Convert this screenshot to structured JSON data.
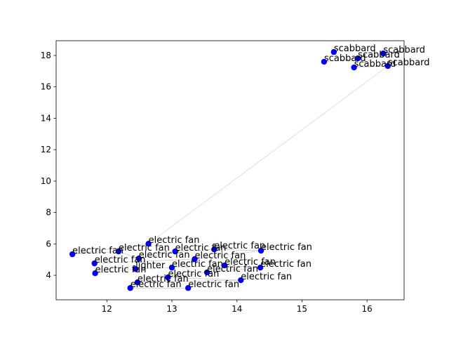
{
  "chart_data": {
    "type": "scatter",
    "x": [
      15.49,
      15.34,
      15.86,
      16.25,
      15.8,
      16.32,
      12.64,
      11.47,
      12.18,
      12.49,
      13.05,
      13.65,
      14.37,
      13.35,
      11.81,
      11.82,
      12.44,
      13.0,
      13.81,
      14.36,
      13.54,
      12.94,
      14.06,
      12.47,
      12.36,
      13.25
    ],
    "y": [
      18.22,
      17.6,
      17.82,
      18.13,
      17.24,
      17.33,
      6.01,
      5.34,
      5.52,
      5.07,
      5.52,
      5.65,
      5.57,
      5.03,
      4.76,
      4.13,
      4.4,
      4.49,
      4.63,
      4.49,
      4.18,
      3.87,
      3.69,
      3.55,
      3.19,
      3.19
    ],
    "labels": [
      "scabbard",
      "scabbard",
      "scabbard",
      "scabbard",
      "scabbard",
      "scabbard",
      "electric fan",
      "electric fan",
      "electric fan",
      "electric fan",
      "electric fan",
      "electric fan",
      "electric fan",
      "electric fan",
      "electric fan",
      "electric fan",
      "lighter",
      "electric fan",
      "electric fan",
      "electric fan",
      "electric fan",
      "electric fan",
      "electric fan",
      "electric fan",
      "electric fan",
      "electric fan"
    ],
    "color": "#0000ff",
    "line_color": "#b0b0b0",
    "xlim": [
      11.22,
      16.57
    ],
    "ylim": [
      2.44,
      18.94
    ],
    "xticks": [
      12,
      13,
      14,
      15,
      16
    ],
    "yticks": [
      4,
      6,
      8,
      10,
      12,
      14,
      16,
      18
    ]
  }
}
